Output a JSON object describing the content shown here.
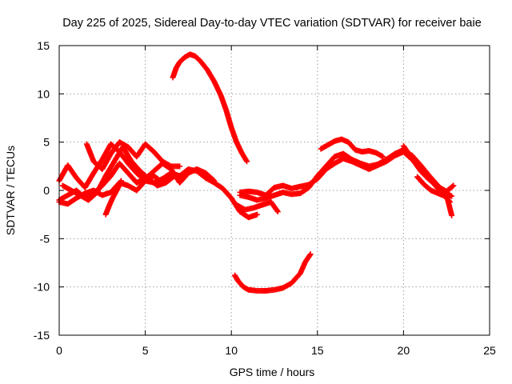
{
  "chart_data": {
    "type": "scatter",
    "title": "Day 225 of 2025, Sidereal Day-to-day VTEC variation (SDTVAR) for receiver baie",
    "xlabel": "GPS time / hours",
    "ylabel": "SDTVAR / TECUs",
    "xlim": [
      0,
      25
    ],
    "ylim": [
      -15,
      15
    ],
    "xticks": [
      0,
      5,
      10,
      15,
      20,
      25
    ],
    "yticks": [
      -15,
      -10,
      -5,
      0,
      5,
      10,
      15
    ],
    "xtick_labels": [
      "0",
      "5",
      "10",
      "15",
      "20",
      "25"
    ],
    "ytick_labels": [
      "-15",
      "-10",
      "-5",
      "0",
      "5",
      "10",
      "15"
    ],
    "grid": true,
    "marker": "plus",
    "color": "#ff0000",
    "series": [
      {
        "name": "track-1",
        "x": [
          0.0,
          0.5,
          1.0,
          1.5,
          2.0,
          2.5,
          3.0,
          3.5,
          4.0,
          4.5,
          5.0,
          5.5,
          6.0,
          6.5,
          7.0,
          7.5,
          8.0,
          8.5,
          9.0,
          9.5,
          10.0,
          10.5,
          11.0,
          11.5
        ],
        "y": [
          1.0,
          2.6,
          1.3,
          0.3,
          1.8,
          3.2,
          4.8,
          4.0,
          2.8,
          1.8,
          1.0,
          0.8,
          1.2,
          1.8,
          1.5,
          2.2,
          2.0,
          1.3,
          0.8,
          0.2,
          -0.8,
          -2.2,
          -2.8,
          -2.5
        ]
      },
      {
        "name": "track-2",
        "x": [
          0.0,
          0.5,
          1.0,
          1.5,
          2.0,
          2.5,
          3.0,
          3.5,
          4.0,
          4.5,
          5.0,
          5.5,
          6.0,
          6.5,
          7.0,
          7.5,
          8.0,
          8.5,
          9.0
        ],
        "y": [
          -1.0,
          -0.5,
          0.0,
          -0.8,
          -0.3,
          0.5,
          1.5,
          2.8,
          1.8,
          0.8,
          1.2,
          2.0,
          2.8,
          2.2,
          0.8,
          1.8,
          2.2,
          1.8,
          1.0
        ]
      },
      {
        "name": "track-3",
        "x": [
          0.2,
          0.7,
          1.2,
          1.7,
          2.2,
          2.7,
          3.2,
          3.7,
          4.2,
          4.7,
          5.2,
          5.7,
          6.2,
          6.7
        ],
        "y": [
          0.5,
          0.0,
          -0.5,
          -1.0,
          -0.2,
          1.5,
          3.0,
          4.5,
          3.0,
          2.0,
          1.2,
          0.5,
          0.8,
          1.5
        ]
      },
      {
        "name": "track-4",
        "x": [
          0.0,
          0.5,
          1.0,
          1.5,
          2.0,
          2.5,
          3.0,
          3.5,
          4.0,
          4.5,
          5.0,
          5.5,
          6.0,
          6.5,
          7.0,
          7.5
        ],
        "y": [
          -1.2,
          -1.4,
          -0.8,
          -0.3,
          0.0,
          -0.5,
          -0.2,
          0.8,
          0.5,
          0.0,
          1.0,
          1.5,
          0.8,
          1.8,
          1.2,
          2.0
        ]
      },
      {
        "name": "track-5",
        "x": [
          1.6,
          2.0,
          2.5,
          3.0,
          3.5,
          4.0,
          4.5,
          5.0,
          5.5,
          6.0,
          6.5,
          7.0
        ],
        "y": [
          4.8,
          3.0,
          2.2,
          3.8,
          5.0,
          4.5,
          3.5,
          4.8,
          4.0,
          3.0,
          2.5,
          2.5
        ]
      },
      {
        "name": "track-6",
        "x": [
          2.7,
          2.9,
          3.1,
          3.4,
          3.6
        ],
        "y": [
          -2.5,
          -1.6,
          -0.8,
          0.2,
          1.0
        ]
      },
      {
        "name": "track-7",
        "x": [
          6.6,
          6.8,
          7.0,
          7.3,
          7.6,
          7.9,
          8.2,
          8.6,
          9.0,
          9.4,
          9.7,
          10.0,
          10.3,
          10.6,
          10.9
        ],
        "y": [
          11.7,
          12.7,
          13.3,
          13.8,
          14.1,
          13.9,
          13.4,
          12.5,
          11.3,
          9.8,
          8.3,
          6.5,
          5.0,
          3.9,
          3.0
        ]
      },
      {
        "name": "track-8",
        "x": [
          10.2,
          10.4,
          10.7,
          11.0,
          11.5,
          12.0,
          12.5,
          13.0,
          13.5,
          14.0,
          14.3,
          14.6
        ],
        "y": [
          -8.8,
          -9.4,
          -10.0,
          -10.3,
          -10.4,
          -10.4,
          -10.3,
          -10.1,
          -9.6,
          -8.6,
          -7.4,
          -6.6
        ]
      },
      {
        "name": "track-9",
        "x": [
          10.5,
          11.0,
          11.5,
          12.0,
          12.5,
          13.0,
          13.5,
          14.0,
          14.5,
          15.0,
          15.5,
          16.0,
          16.5,
          17.0,
          17.5,
          18.0,
          18.5,
          19.0,
          19.5,
          20.0,
          20.5,
          21.0,
          21.5,
          22.0,
          22.5,
          22.8
        ],
        "y": [
          -0.2,
          -0.1,
          -0.2,
          -0.5,
          0.3,
          0.5,
          0.2,
          0.4,
          0.6,
          1.2,
          2.2,
          2.8,
          3.3,
          3.0,
          2.6,
          2.2,
          2.6,
          3.0,
          3.6,
          4.0,
          3.2,
          2.2,
          1.2,
          0.2,
          -0.3,
          -0.6
        ]
      },
      {
        "name": "track-10",
        "x": [
          10.5,
          11.0,
          11.5,
          12.0,
          12.5,
          13.0,
          13.5,
          14.0,
          14.5,
          15.0,
          15.5,
          16.0,
          16.5,
          17.0,
          17.5,
          18.0,
          18.5,
          19.0,
          19.5,
          20.0,
          20.5,
          21.0,
          21.5,
          22.0,
          22.5,
          22.8
        ],
        "y": [
          -0.5,
          -0.7,
          -1.0,
          -0.8,
          -0.5,
          -0.2,
          -0.4,
          -0.3,
          0.3,
          1.5,
          2.5,
          3.5,
          3.8,
          3.2,
          2.8,
          2.5,
          2.7,
          3.2,
          3.8,
          4.2,
          3.6,
          2.6,
          1.5,
          0.5,
          -0.5,
          -2.6
        ]
      },
      {
        "name": "track-11",
        "x": [
          10.3,
          10.8,
          11.3,
          11.8,
          12.3,
          12.7
        ],
        "y": [
          -1.5,
          -2.0,
          -1.8,
          -1.5,
          -1.2,
          -2.2
        ]
      },
      {
        "name": "track-12",
        "x": [
          15.2,
          15.6,
          16.0,
          16.4,
          16.8,
          17.2,
          17.6,
          18.0,
          18.4,
          18.8
        ],
        "y": [
          4.3,
          4.7,
          5.1,
          5.3,
          5.0,
          4.2,
          4.0,
          4.1,
          3.9,
          3.5
        ]
      },
      {
        "name": "track-13",
        "x": [
          20.0,
          20.3,
          20.6,
          21.0,
          21.5,
          22.0,
          22.5,
          22.9
        ],
        "y": [
          4.6,
          3.8,
          3.0,
          2.0,
          1.1,
          0.4,
          -0.1,
          0.5
        ]
      },
      {
        "name": "track-14",
        "x": [
          20.8,
          21.2,
          21.6,
          22.0,
          22.4,
          22.7
        ],
        "y": [
          1.4,
          0.6,
          0.0,
          -0.3,
          -0.6,
          -1.2
        ]
      }
    ]
  }
}
